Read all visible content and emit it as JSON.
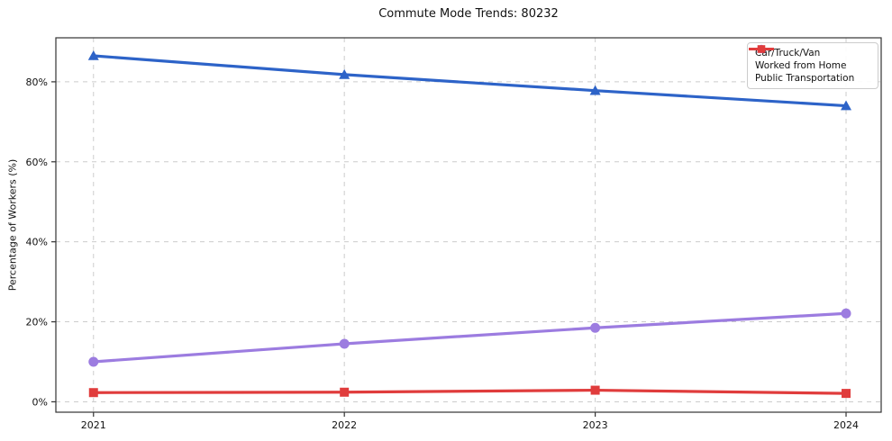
{
  "title": "Commute Mode Trends: 80232",
  "chart_data": {
    "type": "line",
    "title": "Commute Mode Trends: 80232",
    "xlabel": "",
    "ylabel": "Percentage of Workers (%)",
    "x": [
      2021,
      2022,
      2023,
      2024
    ],
    "x_tick_labels": [
      "2021",
      "2022",
      "2023",
      "2024"
    ],
    "series": [
      {
        "name": "Car/Truck/Van",
        "values": [
          86.5,
          81.8,
          77.8,
          74.0
        ],
        "color": "#2d63c8",
        "marker": "triangle"
      },
      {
        "name": "Worked from Home",
        "values": [
          10.0,
          14.5,
          18.5,
          22.1
        ],
        "color": "#9c7ce0",
        "marker": "circle"
      },
      {
        "name": "Public Transportation",
        "values": [
          2.3,
          2.4,
          2.9,
          2.1
        ],
        "color": "#e03c3c",
        "marker": "square"
      }
    ],
    "yticks": [
      0,
      20,
      40,
      60,
      80
    ],
    "ytick_labels": [
      "0%",
      "20%",
      "40%",
      "60%",
      "80%"
    ],
    "ylim": [
      -2.6,
      91.0
    ],
    "xlim": [
      2020.85,
      2024.14
    ],
    "grid": true,
    "grid_style": "dashed",
    "legend_position": "upper right"
  },
  "colors": {
    "grid": "#cccccc",
    "spine": "#333333",
    "text": "#111111",
    "background": "#ffffff"
  }
}
